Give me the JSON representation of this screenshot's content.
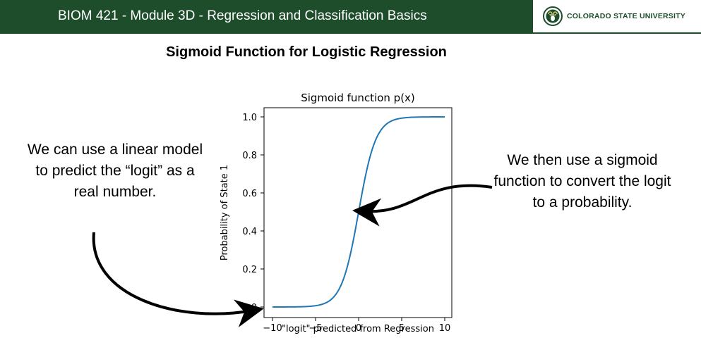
{
  "header": {
    "title": "BIOM 421 - Module  3D - Regression and Classification Basics",
    "logo_text": "COLORADO STATE UNIVERSITY",
    "logo_icon": "ram-head-icon",
    "colors": {
      "header_bg": "#1e4d2b",
      "header_text": "#ffffff"
    }
  },
  "slide": {
    "title": "Sigmoid Function for Logistic Regression",
    "left_note": "We can use a linear model to predict the “logit” as a real number.",
    "right_note": "We then use a sigmoid function to convert the logit to a probability."
  },
  "chart_data": {
    "type": "line",
    "title": "Sigmoid function p(x)",
    "xlabel": "\"logit\" predicted from Regression",
    "ylabel": "Probability of State 1",
    "xlim": [
      -10,
      10
    ],
    "ylim": [
      0,
      1
    ],
    "x_ticks": [
      -10,
      -5,
      0,
      5,
      10
    ],
    "x_tick_labels": [
      "−10",
      "−5",
      "0",
      "5",
      "10"
    ],
    "y_ticks": [
      0,
      0.2,
      0.4,
      0.6,
      0.8,
      1.0
    ],
    "y_tick_labels": [
      "0.0",
      "0.2",
      "0.4",
      "0.6",
      "0.8",
      "1.0"
    ],
    "grid": false,
    "series": [
      {
        "function": "sigmoid",
        "x": [
          -10,
          -9,
          -8,
          -7,
          -6,
          -5,
          -4,
          -3,
          -2,
          -1,
          0,
          1,
          2,
          3,
          4,
          5,
          6,
          7,
          8,
          9,
          10
        ],
        "y": [
          0.0,
          0.0001,
          0.0003,
          0.0009,
          0.0025,
          0.0067,
          0.018,
          0.0474,
          0.1192,
          0.2689,
          0.5,
          0.7311,
          0.8808,
          0.9526,
          0.982,
          0.9933,
          0.9975,
          0.9991,
          0.9997,
          0.9999,
          1.0
        ],
        "color": "#1f77b4"
      }
    ]
  }
}
